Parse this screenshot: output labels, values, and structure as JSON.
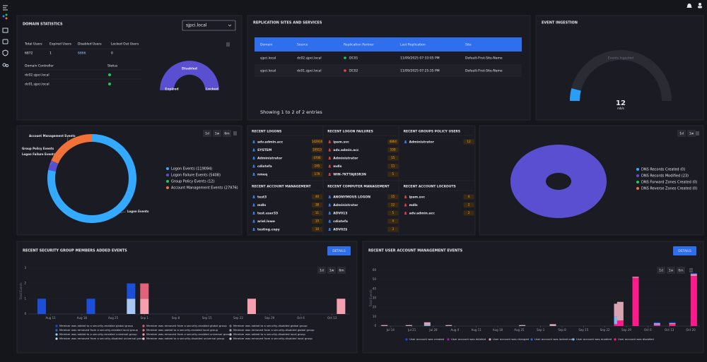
{
  "domain_statistics": {
    "title": "DOMAIN STATISTICS",
    "domain": "sjpci.local",
    "stats": {
      "headers": [
        "Total Users",
        "Expired Users",
        "Disabled Users",
        "Locked Out Users"
      ],
      "values": [
        6872,
        1,
        6866,
        0
      ]
    },
    "controllers": {
      "headers": [
        "Domain Controller",
        "Status"
      ],
      "rows": [
        "dc02.sjpci.local",
        "dc01.sjpci.local"
      ],
      "status_colors": [
        "#22c55e",
        "#22c55e"
      ]
    },
    "gauge": {
      "labels": [
        "Expired",
        "Disabled",
        "Locked"
      ],
      "color": "#5b4fd1"
    }
  },
  "replication": {
    "title": "REPLICATION SITES AND SERVICES",
    "headers": [
      "Domain",
      "Source",
      "Replication Partner",
      "Last Replication",
      "Site"
    ],
    "rows": [
      [
        "sjpci.local",
        "dc02.sjpci.local",
        "DC01",
        "11/09/2025 07:33:05 PM",
        "Default-First-Site-Name"
      ],
      [
        "sjpci.local",
        "dc01.sjpci.local",
        "DC02",
        "11/09/2025 07:25:35 PM",
        "Default-First-Site-Name"
      ]
    ],
    "status_colors": [
      "#22c55e",
      "#ef4444"
    ],
    "footer": "Showing 1 to 2 of 2 entries"
  },
  "event_ingestion": {
    "title": "EVENT INGESTION",
    "label": "Events Ingested",
    "value": 12,
    "unit": "mb/s",
    "range": [
      0,
      150
    ],
    "color": "#2a9df4",
    "track_color": "#2b2c33"
  },
  "recent": {
    "panels": [
      {
        "title": "RECENT LOGONS",
        "icon_color": "#3b82f6",
        "rows": [
          {
            "name": "adv.admin.acc",
            "count": 142910
          },
          {
            "name": "SYSTEM",
            "count": 10913
          },
          {
            "name": "Administrator",
            "count": 4706
          },
          {
            "name": "cdiatefa",
            "count": 245
          },
          {
            "name": "nmeq",
            "count": 179
          }
        ]
      },
      {
        "title": "RECENT LOGON FAILURES",
        "icon_color": "#ef4444",
        "rows": [
          {
            "name": "ipam.svc",
            "count": 4864
          },
          {
            "name": "adv.admin.acc",
            "count": 559
          },
          {
            "name": "Administrator",
            "count": 15
          },
          {
            "name": "mdls",
            "count": 11
          },
          {
            "name": "WIN-7KTTAJ83R3N",
            "count": 5
          }
        ]
      },
      {
        "title": "RECENT GROUPS POLICY USERS",
        "icon_color": "#3b82f6",
        "rows": [
          {
            "name": "Administrator",
            "count": 12
          }
        ]
      },
      {
        "title": "RECENT ACCOUNT MANAGEMENT",
        "icon_color": "#3b82f6",
        "rows": [
          {
            "name": "test3",
            "count": 40
          },
          {
            "name": "mdls",
            "count": 38
          },
          {
            "name": "test.user33",
            "count": 11
          },
          {
            "name": "ariel.lowe",
            "count": 10
          },
          {
            "name": "testing.copy",
            "count": 10
          }
        ]
      },
      {
        "title": "RECENT COMPUTER MANAGEMENT",
        "icon_color": "#3b82f6",
        "rows": [
          {
            "name": "ANONYMOUS LOGON",
            "count": 15
          },
          {
            "name": "Administrator",
            "count": 12
          },
          {
            "name": "ADV013",
            "count": 5
          },
          {
            "name": "cdiatefa",
            "count": 4
          },
          {
            "name": "ADV02$",
            "count": 3
          }
        ]
      },
      {
        "title": "RECENT ACCOUNT LOCKOUTS",
        "icon_color": "#ef4444",
        "rows": [
          {
            "name": "ipam.svc",
            "count": 4
          },
          {
            "name": "mdls",
            "count": 2
          },
          {
            "name": "adv.admin.acc",
            "count": 2
          }
        ]
      }
    ]
  },
  "chart_data": [
    {
      "type": "donut",
      "buttons": [
        "1d",
        "1w",
        "6m"
      ],
      "categories": [
        "Logon Events",
        "Logon Failure Events",
        "Group Policy Events",
        "Account Management Events"
      ],
      "values": [
        119094,
        5408,
        12,
        27976
      ],
      "colors": [
        "#33aaff",
        "#5b4fd1",
        "#22c55e",
        "#f07238"
      ],
      "legend_labels": [
        "Logon Events (119094)",
        "Logon Failure Events (5408)",
        "Group Policy Events (12)",
        "Account Management Events (27976)"
      ]
    },
    {
      "type": "pie",
      "buttons": [
        "1d",
        "1w"
      ],
      "categories": [
        "DNS Records Created",
        "DNS Records Modified",
        "DNS Forward Zones Created",
        "DNS Reverse Zones Created"
      ],
      "values": [
        0,
        23,
        0,
        0
      ],
      "colors": [
        "#33aaff",
        "#5b4fd1",
        "#22c55e",
        "#f07238"
      ],
      "legend_labels": [
        "DNS Records Created (0)",
        "DNS Records Modified (23)",
        "DNS Forward Zones Created (0)",
        "DNS Reverse Zones Created (0)"
      ]
    },
    {
      "type": "bar",
      "title": "RECENT SECURITY GROUP MEMBERS ADDED EVENTS",
      "button": "DETAILS",
      "buttons": [
        "1d",
        "1w",
        "6m"
      ],
      "y_label": "Total Events",
      "x": [
        "Aug 9",
        "Aug 20",
        "Aug 29",
        "Sep 1",
        "Sep 25",
        "Oct 15"
      ],
      "xlim": [
        "Aug 6",
        "Oct 17"
      ],
      "xticks": [
        "Aug 11",
        "Aug 18",
        "Aug 25",
        "Sep 1",
        "Sep 8",
        "Sep 15",
        "Sep 22",
        "Sep 29",
        "Oct 6",
        "Oct 13"
      ],
      "ylim": [
        0,
        3
      ],
      "yticks": [
        0,
        1,
        2,
        3
      ],
      "series": [
        {
          "name": "Member was added to a security-enabled global group",
          "color": "#1d4ed8",
          "values": [
            1,
            1,
            1,
            0,
            0,
            0
          ]
        },
        {
          "name": "Member was removed from a security-enabled global group",
          "color": "#e0637a",
          "values": [
            0,
            0,
            0,
            1,
            0,
            0
          ]
        },
        {
          "name": "Member was added to a security-disabled global group",
          "color": "#6b7280",
          "values": [
            0,
            0,
            0,
            0,
            0,
            0
          ]
        },
        {
          "name": "Member was removed from a security-enabled local group",
          "color": "#2563eb",
          "values": [
            0,
            0,
            0,
            0,
            0,
            0
          ]
        },
        {
          "name": "Member was added to a security-enabled local group",
          "color": "#f87171",
          "values": [
            0,
            0,
            0,
            0,
            0,
            0
          ]
        },
        {
          "name": "Member was removed from a security-disabled global group",
          "color": "#9ca3af",
          "values": [
            0,
            0,
            0,
            0,
            0,
            0
          ]
        },
        {
          "name": "Member was added to a security-enabled universal group",
          "color": "#a5c8f5",
          "values": [
            0,
            0,
            1,
            0,
            0,
            0
          ]
        },
        {
          "name": "Member was removed from a security-enabled universal group",
          "color": "#f4a0ae",
          "values": [
            0,
            0,
            0,
            1,
            1,
            1
          ]
        },
        {
          "name": "Member was added to a security-disabled local group",
          "color": "#c4c7cc",
          "values": [
            0,
            0,
            0,
            0,
            0,
            0
          ]
        },
        {
          "name": "Member was removed from a security-disabled universal group",
          "color": "#bfdbfe",
          "values": [
            0,
            0,
            0,
            0,
            0,
            0
          ]
        },
        {
          "name": "Member was added to a security-disabled universal group",
          "color": "#f9c4cc",
          "values": [
            0,
            0,
            0,
            0,
            0,
            0
          ]
        },
        {
          "name": "Member was removed from a security-disabled local group",
          "color": "#d1d5db",
          "values": [
            0,
            0,
            0,
            0,
            0,
            0
          ]
        }
      ]
    },
    {
      "type": "bar",
      "title": "RECENT USER ACCOUNT MANAGEMENT EVENTS",
      "button": "DETAILS",
      "buttons": [
        "1d",
        "1w",
        "6m"
      ],
      "y_label": "Total Events",
      "x": [
        "Jul 12",
        "Jul 20",
        "Jul 26",
        "Aug 2",
        "Aug 26",
        "Sep 5",
        "Sep 26",
        "Sep 27",
        "Oct 2",
        "Oct 9",
        "Oct 14",
        "Oct 21"
      ],
      "xlim": [
        "Jul 10",
        "Oct 23"
      ],
      "xticks": [
        "Jul 14",
        "Jul 21",
        "Jul 28",
        "Aug 4",
        "Aug 11",
        "Aug 18",
        "Aug 25",
        "Sep 1",
        "Sep 8",
        "Sep 15",
        "Sep 22",
        "Sep 29",
        "Oct 6",
        "Oct 13",
        "Oct 20"
      ],
      "ylim": [
        0,
        60
      ],
      "yticks": [
        0,
        10,
        20,
        30,
        40,
        50,
        60
      ],
      "series": [
        {
          "name": "User account was created",
          "color": "#1d4ed8",
          "values": [
            0,
            0,
            0,
            0,
            0,
            0,
            0,
            0,
            0,
            1,
            1,
            1
          ]
        },
        {
          "name": "User account was deleted",
          "color": "#a21caf",
          "values": [
            0,
            0,
            0,
            0,
            0,
            0,
            0,
            0,
            0,
            0,
            0,
            0
          ]
        },
        {
          "name": "User account was changed",
          "color": "#d8a4b0",
          "values": [
            1,
            1,
            3,
            1,
            1,
            2,
            14,
            20,
            1,
            1,
            1,
            2
          ]
        },
        {
          "name": "User account was locked out",
          "color": "#2563eb",
          "values": [
            0,
            0,
            0,
            0,
            0,
            0,
            0,
            0,
            0,
            0,
            0,
            0
          ]
        },
        {
          "name": "User account was enabled",
          "color": "#7fb6f5",
          "values": [
            0,
            0,
            1,
            0,
            0,
            0,
            8,
            0,
            0,
            1,
            0,
            0
          ]
        },
        {
          "name": "User account was disabled",
          "color": "#ff1a8c",
          "values": [
            0,
            0,
            0,
            0,
            0,
            0,
            2,
            6,
            52,
            1,
            2,
            54
          ]
        }
      ]
    }
  ]
}
